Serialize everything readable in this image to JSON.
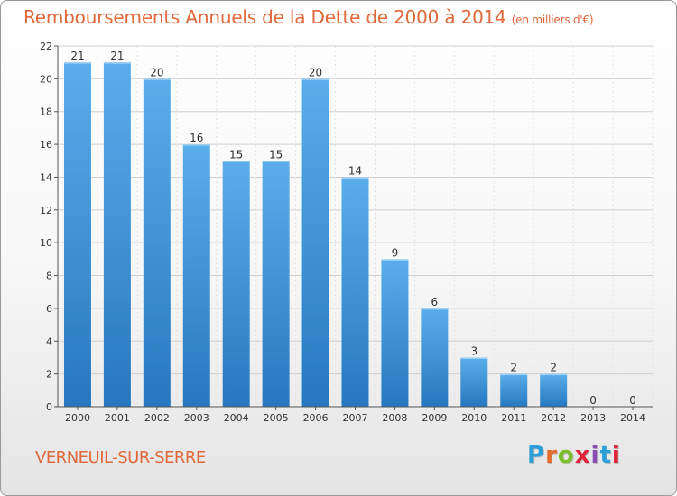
{
  "title": "Remboursements Annuels de la Dette de 2000 à 2014",
  "unit_note": "(en milliers d'€)",
  "commune": "VERNEUIL-SUR-SERRE",
  "logo_text": "Proxiti",
  "colors": {
    "title": "#e0683a",
    "bar_top": "#5aaeea",
    "bar_bottom": "#2578bf",
    "logo": [
      "#2b9fd8",
      "#e56b2e",
      "#7bbf2a",
      "#e0233a",
      "#8a4cb5",
      "#2b9fd8",
      "#e0233a"
    ]
  },
  "chart_data": {
    "type": "bar",
    "categories": [
      "2000",
      "2001",
      "2002",
      "2003",
      "2004",
      "2005",
      "2006",
      "2007",
      "2008",
      "2009",
      "2010",
      "2011",
      "2012",
      "2013",
      "2014"
    ],
    "values": [
      21,
      21,
      20,
      16,
      15,
      15,
      20,
      14,
      9,
      6,
      3,
      2,
      2,
      0,
      0
    ],
    "ylim": [
      0,
      22
    ],
    "yticks": [
      0,
      2,
      4,
      6,
      8,
      10,
      12,
      14,
      16,
      18,
      20,
      22
    ],
    "xlabel": "",
    "ylabel": "",
    "grid": true,
    "legend": false,
    "data_labels": true
  }
}
